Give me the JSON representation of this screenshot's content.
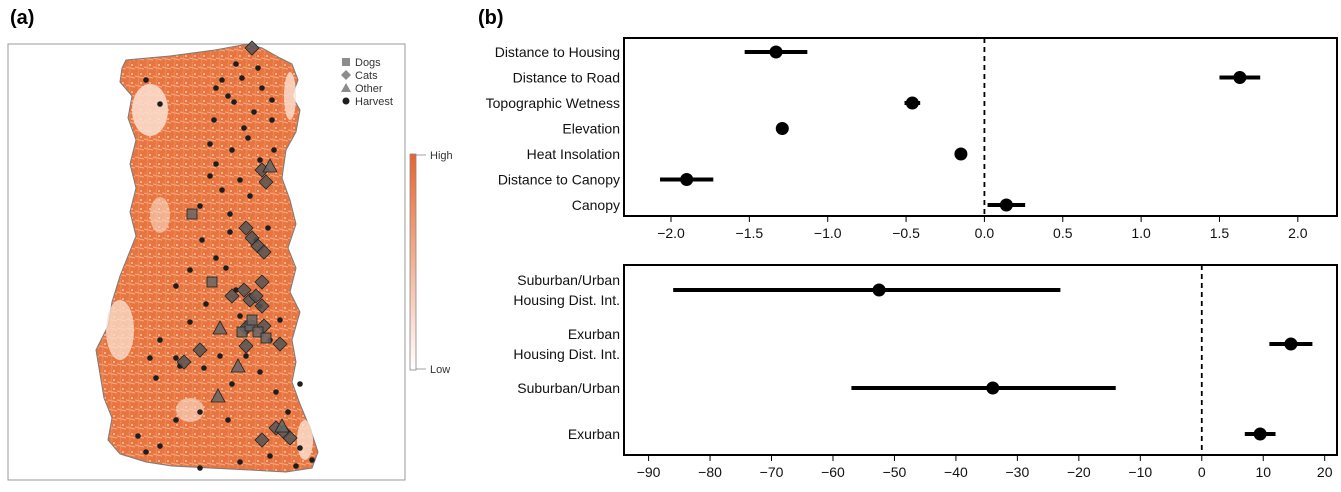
{
  "panel_a": {
    "label": "(a)",
    "legend": [
      {
        "name": "Dogs",
        "shape": "square"
      },
      {
        "name": "Cats",
        "shape": "diamond"
      },
      {
        "name": "Other",
        "shape": "triangle"
      },
      {
        "name": "Harvest",
        "shape": "circle"
      }
    ],
    "scale": {
      "high": "High",
      "low": "Low"
    },
    "colors": {
      "ramp_high": "#e8642c",
      "ramp_low": "#ffffff",
      "point_fill": "#555555",
      "harvest": "#1e1e1e"
    }
  },
  "panel_b": {
    "label": "(b)"
  },
  "chart_data": [
    {
      "type": "scatter",
      "title": "",
      "xlabel": "",
      "ylabel": "",
      "xlim": [
        -2.3,
        2.25
      ],
      "xticks": [
        "−2.0",
        "−1.5",
        "−1.0",
        "−0.5",
        "0.0",
        "0.5",
        "1.0",
        "1.5",
        "2.0"
      ],
      "xtick_values": [
        -2.0,
        -1.5,
        -1.0,
        -0.5,
        0.0,
        0.5,
        1.0,
        1.5,
        2.0
      ],
      "reference_line": 0.0,
      "categories": [
        "Distance to Housing",
        "Distance to Road",
        "Topographic Wetness",
        "Elevation",
        "Heat Insolation",
        "Distance to Canopy",
        "Canopy"
      ],
      "estimates": [
        -1.33,
        1.63,
        -0.46,
        -1.29,
        -0.15,
        -1.9,
        0.14
      ],
      "lower": [
        -1.53,
        1.5,
        -0.51,
        -1.33,
        -0.18,
        -2.07,
        0.02
      ],
      "upper": [
        -1.13,
        1.76,
        -0.41,
        -1.25,
        -0.12,
        -1.73,
        0.26
      ]
    },
    {
      "type": "scatter",
      "title": "",
      "xlabel": "",
      "ylabel": "",
      "xlim": [
        -94,
        22
      ],
      "xticks": [
        "−90",
        "−80",
        "−70",
        "−60",
        "−50",
        "−40",
        "−30",
        "−20",
        "−10",
        "0",
        "10",
        "20"
      ],
      "xtick_values": [
        -90,
        -80,
        -70,
        -60,
        -50,
        -40,
        -30,
        -20,
        -10,
        0,
        10,
        20
      ],
      "reference_line": 0,
      "categories": [
        [
          "Suburban/Urban",
          "Housing Dist. Int."
        ],
        [
          "Exurban",
          "Housing Dist. Int."
        ],
        [
          "Suburban/Urban"
        ],
        [
          "Exurban"
        ]
      ],
      "estimates": [
        -52.5,
        14.5,
        -34,
        9.5
      ],
      "lower": [
        -86,
        11,
        -57,
        7
      ],
      "upper": [
        -23,
        18,
        -14,
        12
      ]
    }
  ]
}
